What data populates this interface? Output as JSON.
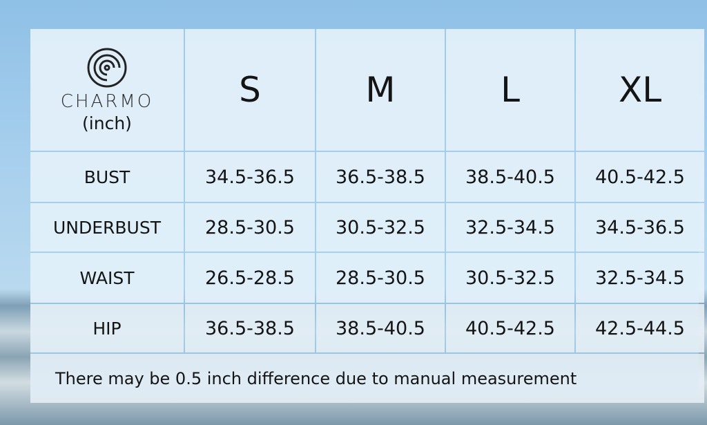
{
  "brand": "CHARMO",
  "unit": "(inch)",
  "sizes": [
    "S",
    "M",
    "L",
    "XL"
  ],
  "rows": [
    {
      "label": "BUST",
      "values": [
        "34.5-36.5",
        "36.5-38.5",
        "38.5-40.5",
        "40.5-42.5"
      ]
    },
    {
      "label": "UNDERBUST",
      "values": [
        "28.5-30.5",
        "30.5-32.5",
        "32.5-34.5",
        "34.5-36.5"
      ]
    },
    {
      "label": "WAIST",
      "values": [
        "26.5-28.5",
        "28.5-30.5",
        "30.5-32.5",
        "32.5-34.5"
      ]
    },
    {
      "label": "HIP",
      "values": [
        "36.5-38.5",
        "38.5-40.5",
        "40.5-42.5",
        "42.5-44.5"
      ]
    }
  ],
  "note": "There may be 0.5 inch difference due to manual measurement",
  "colors": {
    "grid": "#a0cdeb",
    "cell": "#e6f2fb"
  }
}
